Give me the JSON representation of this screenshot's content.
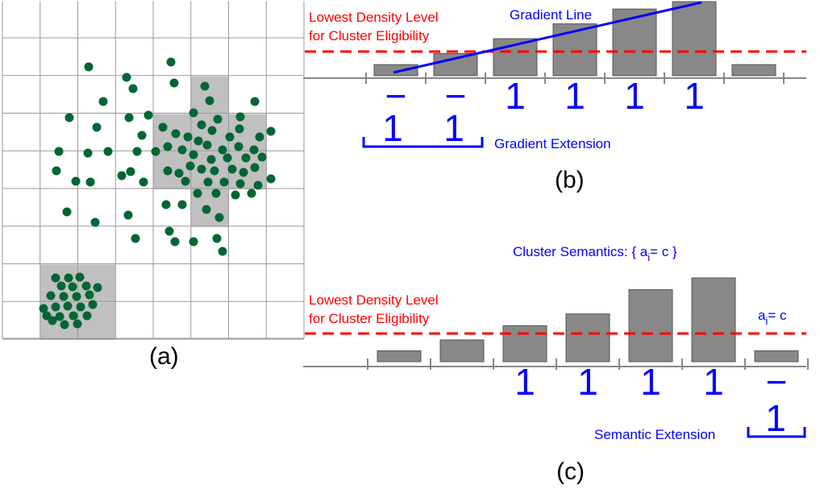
{
  "colors": {
    "dot": "#006633",
    "bar": "#888888",
    "bar_stroke": "#555555",
    "cell": "#c0c0c0",
    "grid": "#999999",
    "threshold": "#ff0000",
    "annotation": "#0000ff"
  },
  "panel_a": {
    "label": "(a)",
    "grid_cols": 8,
    "grid_rows": 9,
    "dense_cells": [
      [
        5,
        2
      ],
      [
        5,
        3
      ],
      [
        4,
        3
      ],
      [
        6,
        3
      ],
      [
        4,
        4
      ],
      [
        5,
        4
      ],
      [
        6,
        4
      ],
      [
        5,
        5
      ],
      [
        1,
        7
      ],
      [
        1,
        8
      ],
      [
        2,
        7
      ],
      [
        2,
        8
      ]
    ]
  },
  "panel_b": {
    "label": "(b)",
    "threshold_label_line1": "Lowest Density Level",
    "threshold_label_line2": "for Cluster Eligibility",
    "gradient_line_label": "Gradient Line",
    "extension_label": "Gradient Extension",
    "bar_heights": [
      0.15,
      0.3,
      0.5,
      0.7,
      0.9,
      1.0,
      0.15
    ],
    "marks": [
      "−",
      "−",
      "1",
      "1",
      "1",
      "1",
      ""
    ],
    "extension_marks": [
      "1",
      "1"
    ]
  },
  "panel_c": {
    "label": "(c)",
    "threshold_label_line1": "Lowest Density Level",
    "threshold_label_line2": "for Cluster Eligibility",
    "semantics_prefix": "Cluster Semantics: { a",
    "semantics_sub": "i",
    "semantics_suffix": "= c }",
    "attr_prefix": "a",
    "attr_sub": "i",
    "attr_suffix": "= c",
    "extension_label": "Semantic Extension",
    "bar_heights": [
      0.13,
      0.26,
      0.43,
      0.57,
      0.86,
      1.0,
      0.13
    ],
    "marks": [
      "",
      "",
      "1",
      "1",
      "1",
      "1",
      "−"
    ],
    "extension_marks": [
      "1"
    ]
  }
}
